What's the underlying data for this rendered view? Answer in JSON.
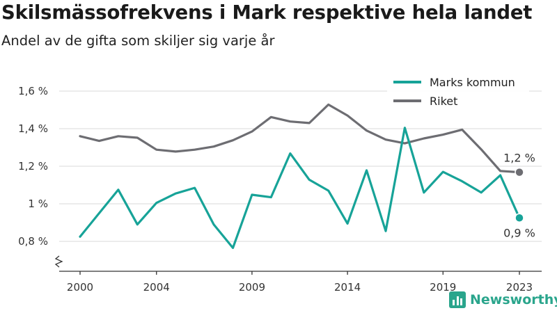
{
  "header": {
    "title": "Skilsmässofrekvens i Mark respektive hela landet",
    "subtitle": "Andel av de gifta som skiljer sig varje år"
  },
  "brand": {
    "name": "Newsworthy"
  },
  "chart_data": {
    "type": "line",
    "title": "Skilsmässofrekvens i Mark respektive hela landet",
    "subtitle": "Andel av de gifta som skiljer sig varje år",
    "x": [
      2000,
      2001,
      2002,
      2003,
      2004,
      2005,
      2006,
      2007,
      2008,
      2009,
      2010,
      2011,
      2012,
      2013,
      2014,
      2015,
      2016,
      2017,
      2018,
      2019,
      2020,
      2021,
      2022,
      2023
    ],
    "x_ticks": [
      2000,
      2004,
      2009,
      2014,
      2019,
      2023
    ],
    "y_ticks": [
      0.8,
      1.0,
      1.2,
      1.4,
      1.6
    ],
    "y_tick_labels": [
      "0,8 %",
      "1 %",
      "1,2 %",
      "1,4 %",
      "1,6 %"
    ],
    "ylim": [
      0.7,
      1.65
    ],
    "xlim": [
      1998.6,
      2024.3
    ],
    "grid": true,
    "legend_position": "top-right",
    "series": [
      {
        "name": "Marks kommun",
        "color": "#17a398",
        "values": [
          0.825,
          0.95,
          1.075,
          0.89,
          1.005,
          1.055,
          1.085,
          0.89,
          0.765,
          1.048,
          1.035,
          1.268,
          1.128,
          1.07,
          0.895,
          1.178,
          0.855,
          1.405,
          1.06,
          1.17,
          1.12,
          1.06,
          1.152,
          0.925
        ],
        "end_label": "0,9 %"
      },
      {
        "name": "Riket",
        "color": "#6d6d72",
        "values": [
          1.36,
          1.335,
          1.36,
          1.352,
          1.288,
          1.278,
          1.288,
          1.305,
          1.338,
          1.385,
          1.462,
          1.438,
          1.43,
          1.528,
          1.47,
          1.39,
          1.342,
          1.322,
          1.348,
          1.368,
          1.395,
          1.29,
          1.175,
          1.168
        ],
        "end_label": "1,2 %"
      }
    ]
  }
}
